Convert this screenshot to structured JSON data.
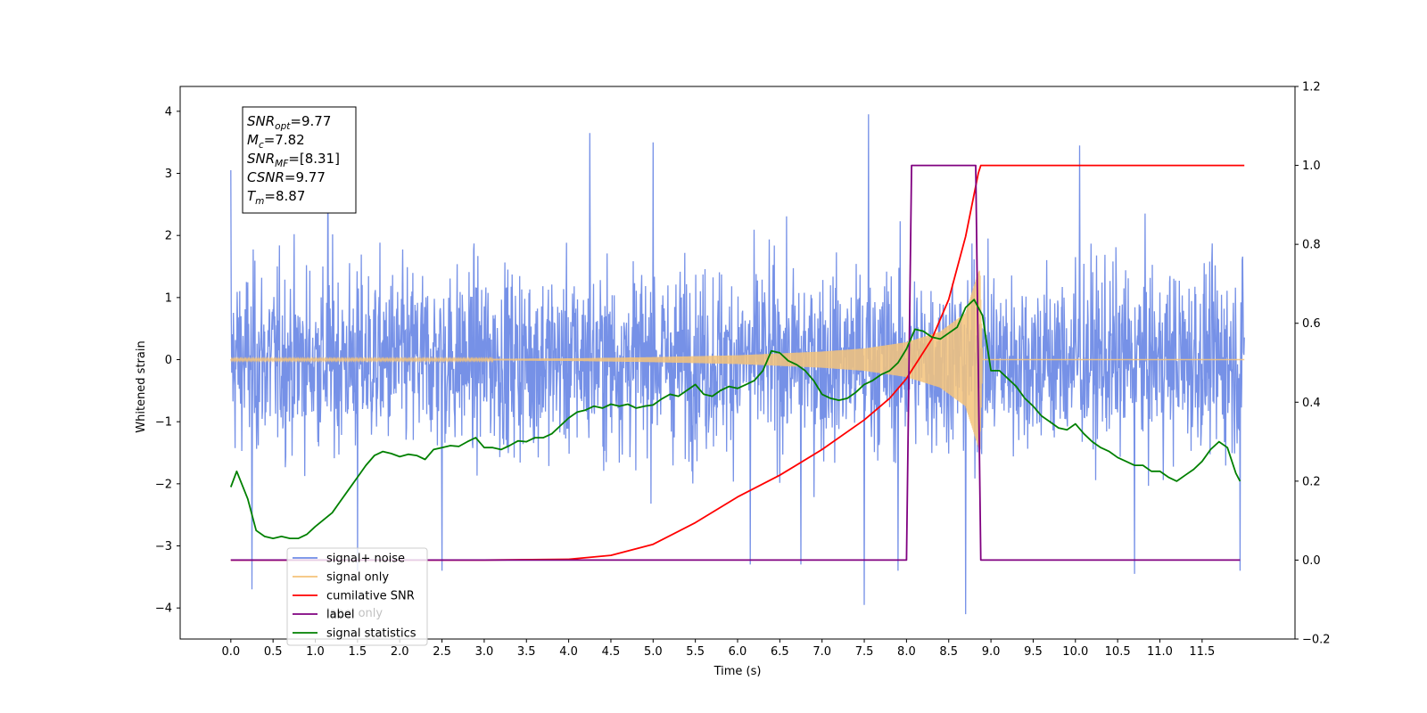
{
  "chart_data": {
    "type": "line",
    "xlabel": "Time (s)",
    "ylabel": "Whitened strain",
    "xlim": [
      -0.6,
      12.6
    ],
    "ylim": [
      -4.5,
      4.4
    ],
    "y2lim": [
      -0.2,
      1.2
    ],
    "x_ticks": [
      "0.0",
      "0.5",
      "1.0",
      "1.5",
      "2.0",
      "2.5",
      "3.0",
      "3.5",
      "4.0",
      "4.5",
      "5.0",
      "5.5",
      "6.0",
      "6.5",
      "7.0",
      "7.5",
      "8.0",
      "8.5",
      "9.0",
      "9.5",
      "10.0",
      "10.5",
      "11.0",
      "11.5"
    ],
    "y_ticks": [
      "4",
      "3",
      "2",
      "1",
      "0",
      "−1",
      "−2",
      "−3",
      "−4"
    ],
    "y2_ticks": [
      "1.2",
      "1.0",
      "0.8",
      "0.6",
      "0.4",
      "0.2",
      "0.0",
      "−0.2"
    ],
    "info_box": [
      {
        "sym": "SNR",
        "sub": "opt",
        "value": "=9.77"
      },
      {
        "sym": "M",
        "sub": "c",
        "value": "=7.82"
      },
      {
        "sym": "SNR",
        "sub": "MF",
        "value": "=[8.31]"
      },
      {
        "sym": "CSNR",
        "sub": "",
        "value": "=9.77"
      },
      {
        "sym": "T",
        "sub": "m",
        "value": "=8.87"
      }
    ],
    "legend": {
      "placement": "lower-left",
      "entries": [
        {
          "label": "signal+ noise",
          "color": "#6f8be6"
        },
        {
          "label": "signal only",
          "color": "#f5c37a"
        },
        {
          "label": "cumilative SNR",
          "color": "#ff0000"
        },
        {
          "label": "label",
          "color": "#800080"
        },
        {
          "label": "signal statistics",
          "color": "#008000"
        }
      ],
      "ghost_label": "label only"
    },
    "series": [
      {
        "name": "signal+ noise",
        "axis": "left",
        "kind": "noise",
        "x_range": [
          0.0,
          12.0
        ],
        "amplitude_typical": 2.3,
        "peaks": [
          [
            0.0,
            3.05
          ],
          [
            0.25,
            -3.7
          ],
          [
            1.15,
            3.5
          ],
          [
            1.5,
            -3.4
          ],
          [
            2.5,
            -3.4
          ],
          [
            4.25,
            3.65
          ],
          [
            5.0,
            3.5
          ],
          [
            6.15,
            -3.3
          ],
          [
            6.75,
            -3.3
          ],
          [
            7.5,
            -3.95
          ],
          [
            7.55,
            3.95
          ],
          [
            7.9,
            -3.4
          ],
          [
            8.7,
            -4.1
          ],
          [
            10.05,
            3.45
          ],
          [
            10.7,
            -3.45
          ],
          [
            11.95,
            -3.4
          ]
        ],
        "color": "#6f8be6"
      },
      {
        "name": "signal only",
        "axis": "left",
        "kind": "chirp",
        "x_range": [
          0.0,
          12.0
        ],
        "merger_time": 8.87,
        "envelope": [
          [
            0.0,
            0.01
          ],
          [
            3.0,
            0.01
          ],
          [
            4.0,
            0.02
          ],
          [
            5.0,
            0.04
          ],
          [
            6.0,
            0.07
          ],
          [
            7.0,
            0.13
          ],
          [
            7.5,
            0.18
          ],
          [
            8.0,
            0.28
          ],
          [
            8.4,
            0.45
          ],
          [
            8.7,
            0.75
          ],
          [
            8.85,
            1.4
          ],
          [
            8.87,
            1.45
          ],
          [
            8.9,
            0.0
          ],
          [
            12.0,
            0.0
          ]
        ],
        "color": "#f5c37a"
      },
      {
        "name": "cumilative SNR",
        "axis": "right",
        "x": [
          0.0,
          3.0,
          4.0,
          4.5,
          5.0,
          5.5,
          6.0,
          6.5,
          7.0,
          7.5,
          7.8,
          8.0,
          8.3,
          8.5,
          8.7,
          8.85,
          8.88,
          12.0
        ],
        "y": [
          0.0,
          0.0,
          0.002,
          0.012,
          0.04,
          0.095,
          0.16,
          0.215,
          0.28,
          0.355,
          0.41,
          0.46,
          0.56,
          0.66,
          0.82,
          0.98,
          1.0,
          1.0
        ],
        "color": "#ff0000"
      },
      {
        "name": "label",
        "axis": "right",
        "x": [
          0.0,
          8.0,
          8.06,
          8.82,
          8.88,
          11.95
        ],
        "y": [
          0.0,
          0.0,
          1.0,
          1.0,
          0.0,
          0.0
        ],
        "color": "#800080"
      },
      {
        "name": "signal statistics",
        "axis": "right",
        "x": [
          0.0,
          0.07,
          0.2,
          0.3,
          0.4,
          0.5,
          0.6,
          0.7,
          0.8,
          0.9,
          1.0,
          1.2,
          1.3,
          1.4,
          1.5,
          1.6,
          1.7,
          1.8,
          1.9,
          2.0,
          2.1,
          2.2,
          2.3,
          2.4,
          2.5,
          2.6,
          2.7,
          2.8,
          2.9,
          3.0,
          3.1,
          3.2,
          3.3,
          3.4,
          3.5,
          3.6,
          3.7,
          3.8,
          3.9,
          4.0,
          4.1,
          4.2,
          4.3,
          4.4,
          4.5,
          4.6,
          4.7,
          4.8,
          4.9,
          5.0,
          5.1,
          5.2,
          5.3,
          5.4,
          5.5,
          5.6,
          5.7,
          5.8,
          5.9,
          6.0,
          6.1,
          6.2,
          6.3,
          6.4,
          6.5,
          6.6,
          6.7,
          6.8,
          6.9,
          7.0,
          7.1,
          7.2,
          7.3,
          7.4,
          7.5,
          7.6,
          7.7,
          7.8,
          7.9,
          8.0,
          8.1,
          8.2,
          8.3,
          8.4,
          8.5,
          8.6,
          8.7,
          8.8,
          8.9,
          9.0,
          9.1,
          9.2,
          9.3,
          9.4,
          9.5,
          9.6,
          9.7,
          9.8,
          9.9,
          10.0,
          10.1,
          10.2,
          10.3,
          10.4,
          10.5,
          10.6,
          10.7,
          10.8,
          10.9,
          11.0,
          11.1,
          11.2,
          11.3,
          11.4,
          11.5,
          11.6,
          11.7,
          11.8,
          11.9,
          11.95
        ],
        "y": [
          0.185,
          0.225,
          0.155,
          0.075,
          0.06,
          0.055,
          0.06,
          0.055,
          0.055,
          0.065,
          0.085,
          0.12,
          0.15,
          0.18,
          0.21,
          0.24,
          0.265,
          0.275,
          0.27,
          0.262,
          0.268,
          0.265,
          0.255,
          0.28,
          0.285,
          0.29,
          0.288,
          0.3,
          0.31,
          0.285,
          0.285,
          0.28,
          0.29,
          0.302,
          0.3,
          0.31,
          0.31,
          0.32,
          0.34,
          0.36,
          0.375,
          0.38,
          0.39,
          0.385,
          0.395,
          0.39,
          0.395,
          0.385,
          0.39,
          0.393,
          0.408,
          0.42,
          0.415,
          0.43,
          0.445,
          0.42,
          0.415,
          0.43,
          0.44,
          0.435,
          0.445,
          0.455,
          0.48,
          0.53,
          0.525,
          0.505,
          0.495,
          0.48,
          0.455,
          0.42,
          0.41,
          0.405,
          0.41,
          0.425,
          0.445,
          0.455,
          0.47,
          0.48,
          0.5,
          0.535,
          0.585,
          0.58,
          0.565,
          0.56,
          0.575,
          0.59,
          0.64,
          0.66,
          0.62,
          0.48,
          0.48,
          0.46,
          0.44,
          0.41,
          0.39,
          0.365,
          0.35,
          0.335,
          0.33,
          0.345,
          0.32,
          0.3,
          0.285,
          0.275,
          0.26,
          0.25,
          0.24,
          0.24,
          0.225,
          0.225,
          0.21,
          0.2,
          0.215,
          0.23,
          0.25,
          0.28,
          0.3,
          0.285,
          0.22,
          0.2
        ],
        "color": "#008000"
      }
    ]
  }
}
